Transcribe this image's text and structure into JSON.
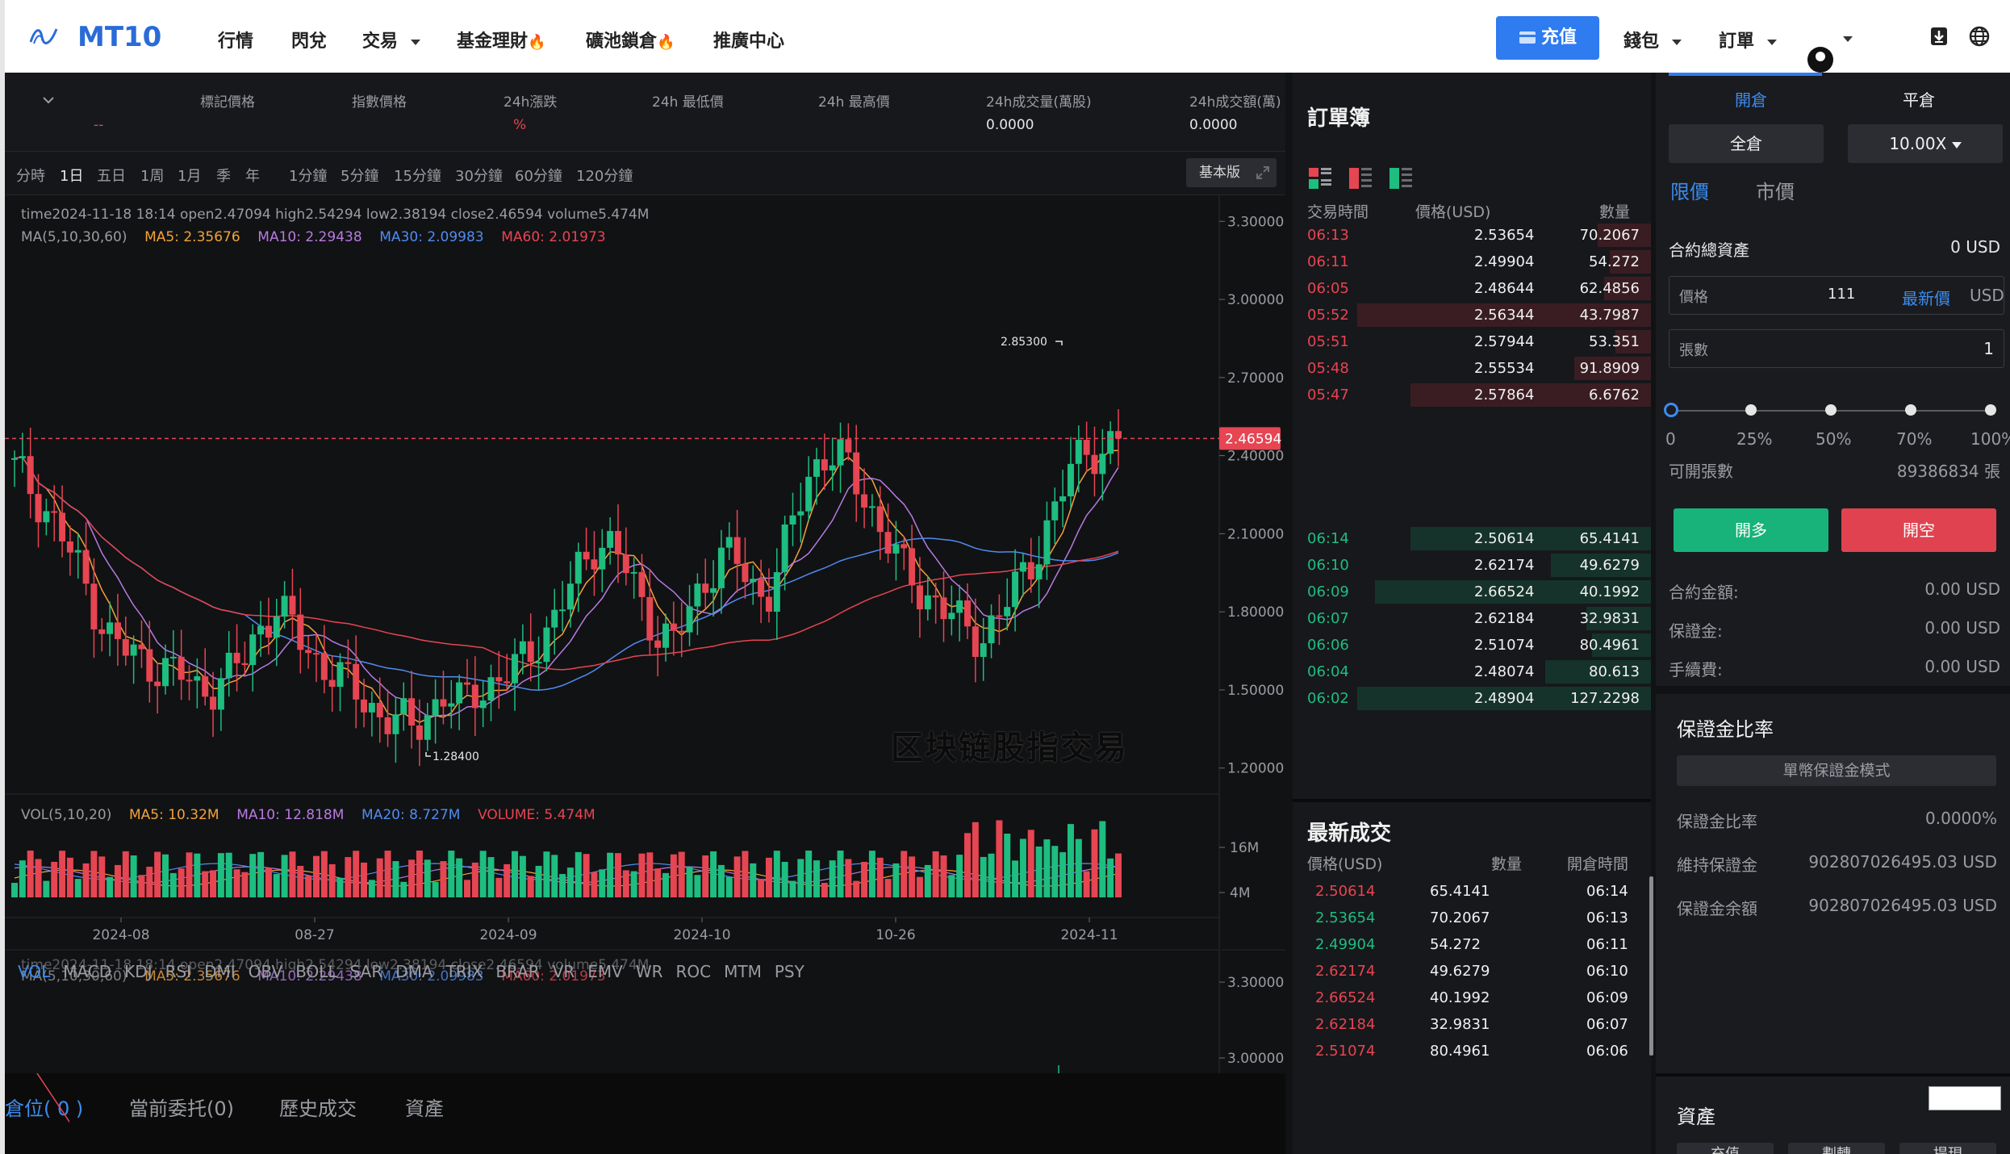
{
  "header": {
    "logo": "MT10",
    "nav": [
      "行情",
      "閃兌",
      "交易",
      "基金理財",
      "礦池鎖倉",
      "推廣中心"
    ],
    "fire_icon": "🔥",
    "recharge": "充值",
    "wallet": "錢包",
    "orders": "訂單"
  },
  "ticker": {
    "change_value": "--",
    "labels": [
      "標記價格",
      "指數價格",
      "24h漲跌",
      "24h 最低價",
      "24h 最高價",
      "24h成交量(萬股)",
      "24h成交額(萬)"
    ],
    "change_pct": "%",
    "volume": "0.0000",
    "turnover": "0.0000"
  },
  "toolbar": {
    "periods": [
      "分時",
      "1日",
      "五日",
      "1周",
      "1月",
      "季",
      "年"
    ],
    "intervals": [
      "1分鐘",
      "5分鐘",
      "15分鐘",
      "30分鐘",
      "60分鐘",
      "120分鐘"
    ],
    "version": "基本版"
  },
  "chart_info": {
    "ohlc": "time2024-11-18 18:14    open2.47094    high2.54294    low2.38194    close2.46594    volume5.474M",
    "ma_label": "MA(5,10,30,60)",
    "ma5": "MA5: 2.35676",
    "ma10": "MA10: 2.29438",
    "ma30": "MA30: 2.09983",
    "ma60": "MA60: 2.01973",
    "vol_label": "VOL(5,10,20)",
    "vol_ma5": "MA5: 10.32M",
    "vol_ma10": "MA10: 12.818M",
    "vol_ma20": "MA20: 8.727M",
    "vol_now": "VOLUME: 5.474M",
    "indicators": [
      "VOL",
      "MACD",
      "KDJ",
      "RSI",
      "DMI",
      "OBV",
      "BOLL",
      "SAR",
      "DMA",
      "TRIX",
      "BRAR",
      "VR",
      "EMV",
      "WR",
      "ROC",
      "MTM",
      "PSY"
    ],
    "watermark": "区块链股指交易",
    "high_label": "2.85300",
    "low_label": "1.28400",
    "current_price": "2.46594"
  },
  "chart_data": {
    "type": "candlestick",
    "price_axis_ticks": [
      "3.30000",
      "3.00000",
      "2.70000",
      "2.40000",
      "2.10000",
      "1.80000",
      "1.50000",
      "1.20000"
    ],
    "volume_axis_ticks": [
      "16M",
      "4M"
    ],
    "x_ticks": [
      "2024-08",
      "08-27",
      "2024-09",
      "2024-10",
      "10-26",
      "2024-11"
    ],
    "ylim": [
      1.1,
      3.4
    ],
    "close_series": [
      2.35,
      2.28,
      2.2,
      2.1,
      1.98,
      1.85,
      1.72,
      1.66,
      1.62,
      1.6,
      1.58,
      1.55,
      1.5,
      1.52,
      1.56,
      1.62,
      1.74,
      1.82,
      1.75,
      1.66,
      1.6,
      1.56,
      1.5,
      1.45,
      1.4,
      1.38,
      1.35,
      1.42,
      1.48,
      1.44,
      1.5,
      1.52,
      1.55,
      1.6,
      1.68,
      1.75,
      1.86,
      1.98,
      2.08,
      2.05,
      1.95,
      1.82,
      1.72,
      1.68,
      1.8,
      1.92,
      2.02,
      2.0,
      1.9,
      1.86,
      2.0,
      2.18,
      2.35,
      2.42,
      2.38,
      2.28,
      2.18,
      2.08,
      1.95,
      1.88,
      1.85,
      1.8,
      1.72,
      1.7,
      1.78,
      1.86,
      1.95,
      2.08,
      2.22,
      2.35,
      2.44,
      2.41,
      2.47
    ]
  },
  "orderbook": {
    "title": "訂單簿",
    "headers": [
      "交易時間",
      "價格(USD)",
      "數量"
    ],
    "asks": [
      {
        "time": "06:13",
        "price": "2.53654",
        "qty": "70.2067",
        "depth": 0.18
      },
      {
        "time": "06:11",
        "price": "2.49904",
        "qty": "54.272",
        "depth": 0.14
      },
      {
        "time": "06:05",
        "price": "2.48644",
        "qty": "62.4856",
        "depth": 0.16
      },
      {
        "time": "05:52",
        "price": "2.56344",
        "qty": "43.7987",
        "depth": 1.0
      },
      {
        "time": "05:51",
        "price": "2.57944",
        "qty": "53.351",
        "depth": 0.12
      },
      {
        "time": "05:48",
        "price": "2.55534",
        "qty": "91.8909",
        "depth": 0.26
      },
      {
        "time": "05:47",
        "price": "2.57864",
        "qty": "6.6762",
        "depth": 0.82
      }
    ],
    "bids": [
      {
        "time": "06:14",
        "price": "2.50614",
        "qty": "65.4141",
        "depth": 0.82
      },
      {
        "time": "06:10",
        "price": "2.62174",
        "qty": "49.6279",
        "depth": 0.34
      },
      {
        "time": "06:09",
        "price": "2.66524",
        "qty": "40.1992",
        "depth": 0.94
      },
      {
        "time": "06:07",
        "price": "2.62184",
        "qty": "32.9831",
        "depth": 0.22
      },
      {
        "time": "06:06",
        "price": "2.51074",
        "qty": "80.4961",
        "depth": 0.2
      },
      {
        "time": "06:04",
        "price": "2.48074",
        "qty": "80.613",
        "depth": 0.36
      },
      {
        "time": "06:02",
        "price": "2.48904",
        "qty": "127.2298",
        "depth": 1.0
      }
    ]
  },
  "trades": {
    "title": "最新成交",
    "headers": [
      "價格(USD)",
      "數量",
      "開倉時間"
    ],
    "rows": [
      {
        "price": "2.50614",
        "qty": "65.4141",
        "time": "06:14",
        "side": "sell"
      },
      {
        "price": "2.53654",
        "qty": "70.2067",
        "time": "06:13",
        "side": "buy"
      },
      {
        "price": "2.49904",
        "qty": "54.272",
        "time": "06:11",
        "side": "buy"
      },
      {
        "price": "2.62174",
        "qty": "49.6279",
        "time": "06:10",
        "side": "sell"
      },
      {
        "price": "2.66524",
        "qty": "40.1992",
        "time": "06:09",
        "side": "sell"
      },
      {
        "price": "2.62184",
        "qty": "32.9831",
        "time": "06:07",
        "side": "sell"
      },
      {
        "price": "2.51074",
        "qty": "80.4961",
        "time": "06:06",
        "side": "sell"
      }
    ]
  },
  "panel": {
    "tab_open": "開倉",
    "tab_close": "平倉",
    "margin_mode": "全倉",
    "leverage": "10.00X",
    "limit": "限價",
    "market": "市價",
    "total_assets_label": "合約總資產",
    "total_assets": "0 USD",
    "price_label": "價格",
    "price_value": "111",
    "latest_price": "最新價",
    "unit": "USD",
    "lots_label": "張數",
    "lots_value": "1",
    "slider_marks": [
      "0",
      "25%",
      "50%",
      "70%",
      "100%"
    ],
    "slider_value": 0,
    "available_label": "可開張數",
    "available_value": "89386834 張",
    "buy_long": "開多",
    "sell_short": "開空",
    "contract_amount_label": "合約金額:",
    "contract_amount": "0.00 USD",
    "margin_label": "保證金:",
    "margin": "0.00 USD",
    "fee_label": "手續費:",
    "fee": "0.00 USD"
  },
  "margin": {
    "title": "保證金比率",
    "mode_button": "單幣保證金模式",
    "ratio_label": "保證金比率",
    "ratio": "0.0000%",
    "maint_label": "維持保證金",
    "maint": "902807026495.03 USD",
    "balance_label": "保證金余額",
    "balance": "902807026495.03 USD"
  },
  "bottom_tabs": {
    "positions": "倉位( 0 )",
    "open_orders": "當前委托(0)",
    "history": "歷史成交",
    "assets": "資產"
  },
  "assets_panel": {
    "title": "資產",
    "deposit": "充值",
    "transfer": "劃轉",
    "withdraw": "提現"
  },
  "colors": {
    "up": "#1ebd80",
    "down": "#e64552",
    "accent": "#2f7bf0"
  }
}
